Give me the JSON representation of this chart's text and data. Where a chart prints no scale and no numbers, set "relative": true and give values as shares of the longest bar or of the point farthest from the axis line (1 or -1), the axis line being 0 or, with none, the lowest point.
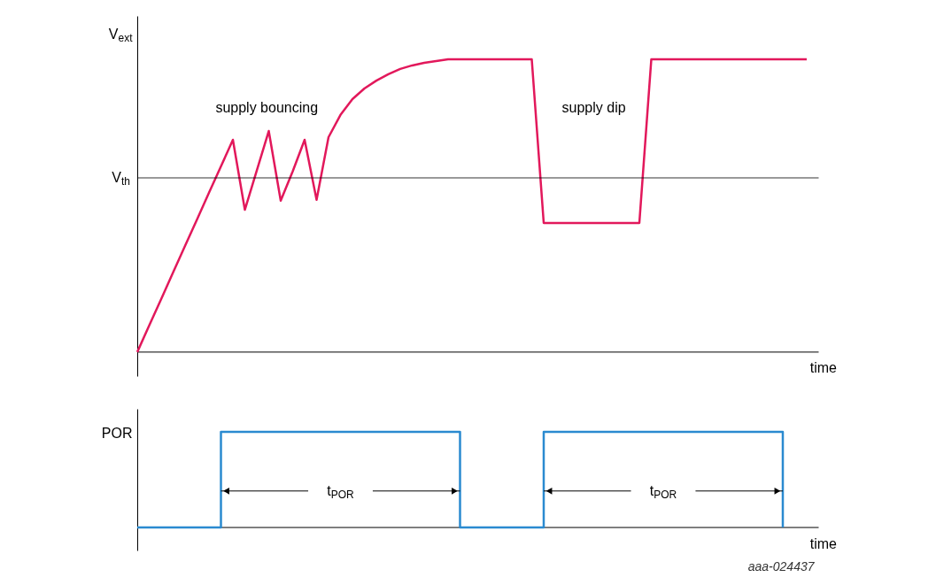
{
  "chart_data": [
    {
      "type": "line",
      "relative": true,
      "ylabel": "V$_{ext}$",
      "xlabel": "time",
      "tick_labels": false,
      "grid": false,
      "marker": "none",
      "line_style": "solid",
      "categories": [
        null,
        null,
        null,
        null,
        null,
        null,
        null,
        null,
        null,
        null,
        null,
        null,
        null,
        null,
        null,
        null,
        null,
        null,
        null,
        null,
        null,
        null,
        null,
        null,
        null,
        null,
        null,
        null,
        null,
        null,
        null,
        null,
        null,
        null,
        null,
        null,
        null,
        null,
        null,
        null,
        null,
        null,
        null,
        null,
        null,
        null,
        null,
        null,
        null,
        null,
        null,
        null,
        null,
        null,
        null,
        null,
        null,
        null
      ],
      "series": [
        {
          "color": "#e2185b",
          "values": [
            0,
            0.091,
            0.181,
            0.272,
            0.363,
            0.453,
            0.544,
            0.634,
            0.725,
            0.486,
            0.62,
            0.755,
            0.517,
            0.617,
            0.725,
            0.52,
            0.734,
            0.81,
            0.864,
            0.9,
            0.927,
            0.949,
            0.967,
            0.979,
            0.988,
            0.994,
            1,
            1,
            1,
            1,
            1,
            1,
            1,
            1,
            0.441,
            0.441,
            0.441,
            0.441,
            0.441,
            0.441,
            0.441,
            0.441,
            0.441,
            1,
            1,
            1,
            1,
            1,
            1,
            1,
            1,
            1,
            1,
            1,
            1,
            1,
            1,
            null
          ]
        }
      ],
      "ref_lines": [
        {
          "axis": "y",
          "value": 0.595,
          "label": "V$_{th}$"
        }
      ],
      "annotations": [
        "supply bouncing",
        "supply dip"
      ]
    },
    {
      "type": "step",
      "relative": true,
      "ylabel": "POR",
      "xlabel": "time",
      "tick_labels": false,
      "grid": false,
      "marker": "none",
      "line_style": "solid",
      "categories": [
        null,
        null,
        null,
        null,
        null,
        null,
        null,
        null,
        null,
        null,
        null,
        null,
        null,
        null,
        null,
        null,
        null,
        null,
        null,
        null,
        null,
        null,
        null,
        null,
        null,
        null,
        null,
        null,
        null,
        null,
        null,
        null,
        null,
        null,
        null,
        null,
        null,
        null,
        null,
        null,
        null,
        null,
        null,
        null,
        null,
        null,
        null,
        null,
        null,
        null,
        null,
        null,
        null,
        null,
        null,
        null,
        null,
        null
      ],
      "series": [
        {
          "color": "#2a8ad0",
          "values": [
            0,
            0,
            0,
            0,
            0,
            0,
            0,
            1,
            1,
            1,
            1,
            1,
            1,
            1,
            1,
            1,
            1,
            1,
            1,
            1,
            1,
            1,
            1,
            1,
            1,
            1,
            1,
            0,
            0,
            0,
            0,
            0,
            0,
            0,
            1,
            1,
            1,
            1,
            1,
            1,
            1,
            1,
            1,
            1,
            1,
            1,
            1,
            1,
            1,
            1,
            1,
            1,
            1,
            1,
            0,
            null,
            null,
            null
          ]
        }
      ],
      "annotations": [
        "t$_{POR}$",
        "t$_{POR}$",
        "aaa-024437"
      ]
    }
  ]
}
